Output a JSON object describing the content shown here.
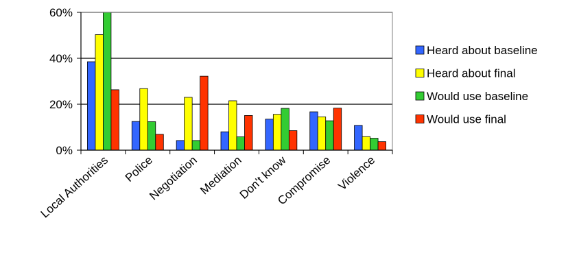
{
  "chart_data": {
    "type": "bar",
    "categories": [
      "Local Authorities",
      "Police",
      "Negotiation",
      "Mediation",
      "Don't know",
      "Compromise",
      "Violence"
    ],
    "series": [
      {
        "name": "Heard about baseline",
        "color": "#3366FF",
        "values": [
          38.5,
          12.5,
          4.2,
          8.0,
          13.5,
          16.7,
          10.8
        ]
      },
      {
        "name": "Heard about final",
        "color": "#FFFF00",
        "values": [
          50.3,
          26.8,
          23.0,
          21.5,
          15.6,
          14.5,
          5.9
        ]
      },
      {
        "name": "Would use baseline",
        "color": "#33CC33",
        "values": [
          60.0,
          12.4,
          4.2,
          5.8,
          18.2,
          12.8,
          5.2
        ]
      },
      {
        "name": "Would use final",
        "color": "#FF3300",
        "values": [
          26.3,
          6.9,
          32.2,
          15.1,
          8.5,
          18.3,
          3.7
        ]
      }
    ],
    "y_ticks": [
      "0%",
      "20%",
      "40%",
      "60%"
    ],
    "ylim": [
      0,
      60
    ],
    "y_unit": "percent",
    "grid": true,
    "legend": "right"
  }
}
